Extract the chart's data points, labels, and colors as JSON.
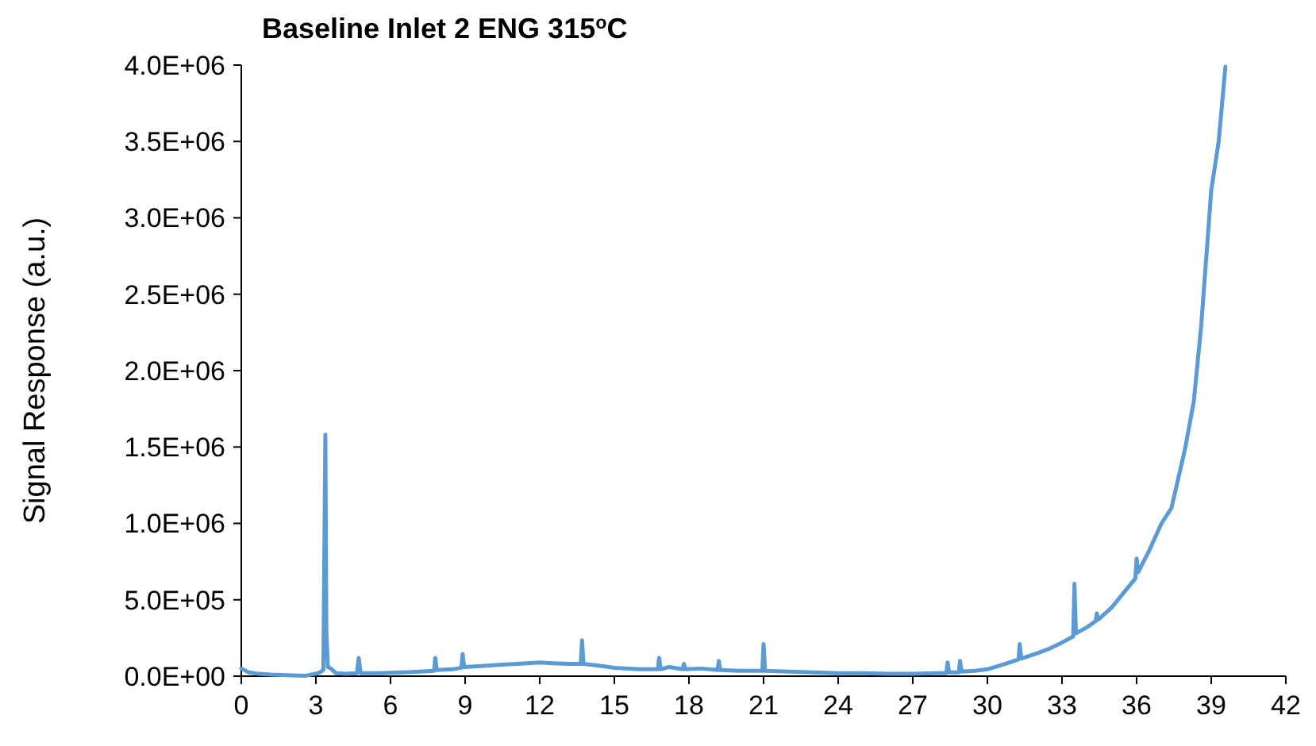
{
  "chart_data": {
    "type": "line",
    "title": "Baseline Inlet 2 ENG 315$^{o}$C",
    "ylabel": "Signal Response (a.u.)",
    "xlim": [
      0,
      42
    ],
    "xticks": [
      0,
      3,
      6,
      9,
      12,
      15,
      18,
      21,
      24,
      27,
      30,
      33,
      36,
      39,
      42
    ],
    "ylim": [
      0,
      4000000
    ],
    "yticks": [
      {
        "value": 0,
        "label": "0.0E+00"
      },
      {
        "value": 500000,
        "label": "5.0E+05"
      },
      {
        "value": 1000000,
        "label": "1.0E+06"
      },
      {
        "value": 1500000,
        "label": "1.5E+06"
      },
      {
        "value": 2000000,
        "label": "2.0E+06"
      },
      {
        "value": 2500000,
        "label": "2.5E+06"
      },
      {
        "value": 3000000,
        "label": "3.0E+06"
      },
      {
        "value": 3500000,
        "label": "3.5E+06"
      },
      {
        "value": 4000000,
        "label": "4.0E+06"
      }
    ],
    "grid": false,
    "marker": "none",
    "line_style": "solid",
    "series": [
      {
        "color": "#5b9bd5",
        "x": [
          0,
          0.3,
          0.7,
          1.2,
          2.0,
          2.6,
          3.1,
          3.3,
          3.38,
          3.42,
          3.48,
          3.6,
          3.8,
          4.2,
          4.65,
          4.72,
          4.8,
          5.5,
          6.5,
          7.2,
          7.75,
          7.8,
          7.86,
          8.5,
          8.85,
          8.9,
          8.96,
          9.5,
          10.5,
          11.5,
          12.0,
          12.5,
          13.2,
          13.65,
          13.7,
          13.76,
          14.3,
          15.0,
          16.0,
          16.75,
          16.8,
          16.86,
          17.2,
          17.75,
          17.8,
          17.86,
          18.5,
          19.15,
          19.2,
          19.26,
          20.0,
          20.95,
          21.0,
          21.06,
          22.0,
          23.0,
          24.0,
          25.0,
          26.0,
          27.0,
          28.0,
          28.35,
          28.4,
          28.46,
          28.85,
          28.9,
          28.96,
          29.5,
          30.0,
          30.5,
          31.0,
          31.25,
          31.3,
          31.36,
          32.0,
          32.5,
          33.0,
          33.45,
          33.5,
          33.56,
          34.0,
          34.35,
          34.4,
          34.46,
          35.0,
          35.5,
          35.95,
          36.0,
          36.06,
          36.5,
          37.0,
          37.4,
          37.95,
          38.3,
          38.6,
          39.0,
          39.3,
          39.57
        ],
        "values": [
          50000,
          25000,
          15000,
          10000,
          5000,
          3000,
          20000,
          40000,
          1580000,
          300000,
          60000,
          50000,
          20000,
          15000,
          20000,
          120000,
          20000,
          20000,
          25000,
          30000,
          35000,
          120000,
          40000,
          45000,
          55000,
          145000,
          60000,
          65000,
          75000,
          85000,
          90000,
          85000,
          80000,
          80000,
          235000,
          80000,
          70000,
          55000,
          45000,
          45000,
          120000,
          45000,
          60000,
          45000,
          80000,
          45000,
          50000,
          40000,
          100000,
          40000,
          35000,
          35000,
          210000,
          35000,
          30000,
          25000,
          20000,
          20000,
          15000,
          15000,
          20000,
          20000,
          90000,
          25000,
          25000,
          100000,
          30000,
          35000,
          45000,
          70000,
          95000,
          110000,
          210000,
          115000,
          150000,
          180000,
          220000,
          260000,
          605000,
          280000,
          320000,
          360000,
          410000,
          370000,
          450000,
          550000,
          640000,
          770000,
          680000,
          820000,
          1000000,
          1100000,
          1490000,
          1800000,
          2300000,
          3180000,
          3500000,
          3990000
        ]
      }
    ]
  }
}
